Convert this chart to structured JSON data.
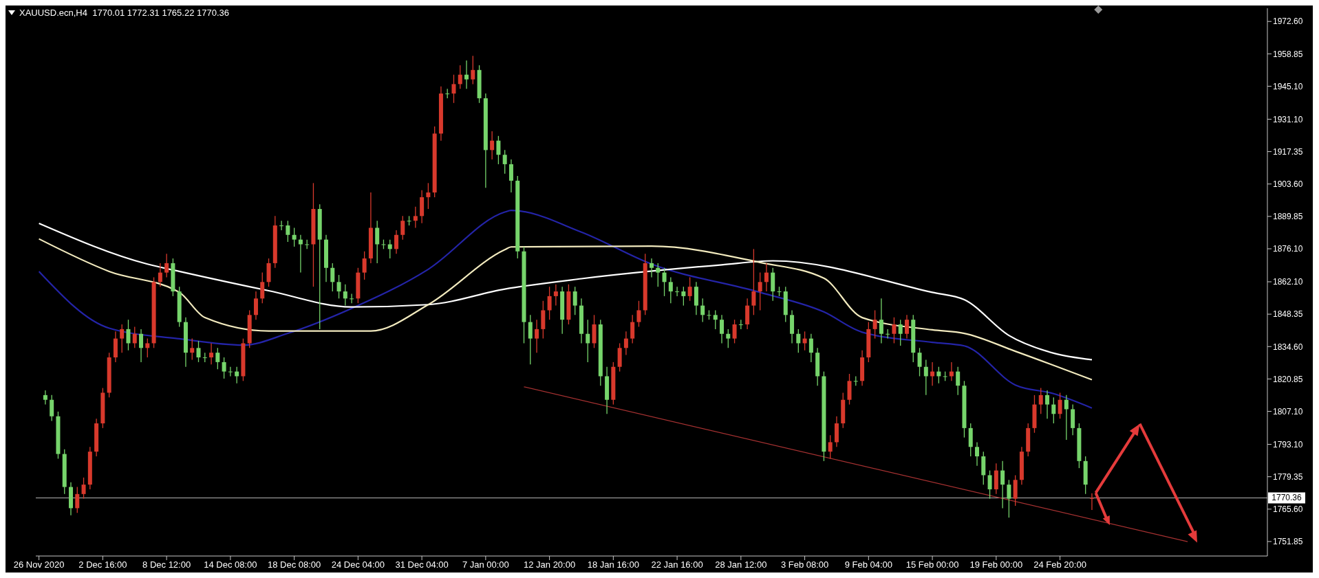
{
  "chart_data": {
    "type": "candlestick",
    "title": "XAUUSD.ecn,H4  1770.01 1772.31 1765.22 1770.36",
    "ylim": [
      1745.7,
      1978.2
    ],
    "yticks": [
      {
        "value": 1972.6,
        "label": "1972.60"
      },
      {
        "value": 1958.85,
        "label": "1958.85"
      },
      {
        "value": 1945.1,
        "label": "1945.10"
      },
      {
        "value": 1931.1,
        "label": "1931.10"
      },
      {
        "value": 1917.35,
        "label": "1917.35"
      },
      {
        "value": 1903.6,
        "label": "1903.60"
      },
      {
        "value": 1889.85,
        "label": "1889.85"
      },
      {
        "value": 1876.1,
        "label": "1876.10"
      },
      {
        "value": 1862.1,
        "label": "1862.10"
      },
      {
        "value": 1848.35,
        "label": "1848.35"
      },
      {
        "value": 1834.6,
        "label": "1834.60"
      },
      {
        "value": 1820.85,
        "label": "1820.85"
      },
      {
        "value": 1807.1,
        "label": "1807.10"
      },
      {
        "value": 1793.1,
        "label": "1793.10"
      },
      {
        "value": 1779.35,
        "label": "1779.35"
      },
      {
        "value": 1765.6,
        "label": "1765.60"
      },
      {
        "value": 1751.85,
        "label": "1751.85"
      }
    ],
    "categories": [
      "26 Nov 2020",
      null,
      null,
      null,
      null,
      null,
      null,
      null,
      null,
      null,
      "2 Dec 16:00",
      null,
      null,
      null,
      null,
      null,
      null,
      null,
      null,
      null,
      "8 Dec 12:00",
      null,
      null,
      null,
      null,
      null,
      null,
      null,
      null,
      null,
      "14 Dec 08:00",
      null,
      null,
      null,
      null,
      null,
      null,
      null,
      null,
      null,
      "18 Dec 08:00",
      null,
      null,
      null,
      null,
      null,
      null,
      null,
      null,
      null,
      "24 Dec 04:00",
      null,
      null,
      null,
      null,
      null,
      null,
      null,
      null,
      null,
      "31 Dec 04:00",
      null,
      null,
      null,
      null,
      null,
      null,
      null,
      null,
      null,
      "7 Jan 00:00",
      null,
      null,
      null,
      null,
      null,
      null,
      null,
      null,
      null,
      "12 Jan 20:00",
      null,
      null,
      null,
      null,
      null,
      null,
      null,
      null,
      null,
      "18 Jan 16:00",
      null,
      null,
      null,
      null,
      null,
      null,
      null,
      null,
      null,
      "22 Jan 16:00",
      null,
      null,
      null,
      null,
      null,
      null,
      null,
      null,
      null,
      "28 Jan 12:00",
      null,
      null,
      null,
      null,
      null,
      null,
      null,
      null,
      null,
      "3 Feb 08:00",
      null,
      null,
      null,
      null,
      null,
      null,
      null,
      null,
      null,
      "9 Feb 04:00",
      null,
      null,
      null,
      null,
      null,
      null,
      null,
      null,
      null,
      "15 Feb 00:00",
      null,
      null,
      null,
      null,
      null,
      null,
      null,
      null,
      null,
      "19 Feb 00:00",
      null,
      null,
      null,
      null,
      null,
      null,
      null,
      null,
      null,
      "24 Feb 20:00",
      null,
      null,
      null,
      null,
      null,
      null,
      null,
      null,
      null,
      null,
      null,
      null,
      null,
      null,
      null,
      null,
      null,
      null,
      null,
      null,
      null,
      null,
      null,
      null,
      null,
      null,
      null,
      null,
      null,
      null,
      null,
      null
    ],
    "ohlc": [
      null,
      [
        1814,
        1816,
        1810,
        1812
      ],
      [
        1812,
        1814,
        1803,
        1805
      ],
      [
        1805,
        1807,
        1787,
        1789
      ],
      [
        1789,
        1791,
        1772,
        1775
      ],
      [
        1775,
        1777,
        1763,
        1766
      ],
      [
        1766,
        1775,
        1764,
        1772
      ],
      [
        1772,
        1779,
        1770,
        1776
      ],
      [
        1776,
        1792,
        1774,
        1790
      ],
      [
        1790,
        1804,
        1788,
        1802
      ],
      [
        1802,
        1817,
        1800,
        1815
      ],
      [
        1815,
        1832,
        1813,
        1830
      ],
      [
        1830,
        1841,
        1828,
        1838
      ],
      [
        1838,
        1844,
        1832,
        1842
      ],
      [
        1842,
        1846,
        1833,
        1836
      ],
      [
        1836,
        1843,
        1834,
        1840
      ],
      [
        1840,
        1842,
        1828,
        1834
      ],
      [
        1834,
        1838,
        1830,
        1836
      ],
      [
        1836,
        1864,
        1834,
        1862
      ],
      [
        1862,
        1870,
        1860,
        1866
      ],
      [
        1866,
        1874,
        1864,
        1870
      ],
      [
        1870,
        1872,
        1856,
        1858
      ],
      [
        1858,
        1860,
        1843,
        1845
      ],
      [
        1845,
        1847,
        1826,
        1832
      ],
      [
        1832,
        1838,
        1829,
        1834
      ],
      [
        1834,
        1837,
        1828,
        1830
      ],
      [
        1830,
        1832,
        1828,
        1830
      ],
      [
        1830,
        1836,
        1827,
        1832
      ],
      [
        1832,
        1834,
        1825,
        1828
      ],
      [
        1828,
        1830,
        1821,
        1824
      ],
      [
        1824,
        1826,
        1822,
        1824
      ],
      [
        1824,
        1826,
        1819,
        1822
      ],
      [
        1822,
        1838,
        1820,
        1836
      ],
      [
        1836,
        1850,
        1834,
        1848
      ],
      [
        1848,
        1858,
        1846,
        1855
      ],
      [
        1855,
        1866,
        1853,
        1862
      ],
      [
        1862,
        1872,
        1860,
        1870
      ],
      [
        1870,
        1890,
        1868,
        1886
      ],
      [
        1886,
        1888,
        1884,
        1886
      ],
      [
        1886,
        1888,
        1879,
        1882
      ],
      [
        1882,
        1885,
        1877,
        1880
      ],
      [
        1880,
        1882,
        1866,
        1878
      ],
      [
        1878,
        1880,
        1876,
        1878
      ],
      [
        1878,
        1904,
        1860,
        1893
      ],
      [
        1893,
        1895,
        1842,
        1880
      ],
      [
        1880,
        1882,
        1862,
        1868
      ],
      [
        1868,
        1870,
        1858,
        1862
      ],
      [
        1862,
        1865,
        1855,
        1858
      ],
      [
        1858,
        1861,
        1852,
        1855
      ],
      [
        1855,
        1857,
        1853,
        1855
      ],
      [
        1855,
        1868,
        1853,
        1866
      ],
      [
        1866,
        1875,
        1863,
        1872
      ],
      [
        1872,
        1900,
        1870,
        1885
      ],
      [
        1885,
        1888,
        1870,
        1878
      ],
      [
        1878,
        1880,
        1876,
        1878
      ],
      [
        1878,
        1880,
        1872,
        1876
      ],
      [
        1876,
        1884,
        1874,
        1882
      ],
      [
        1882,
        1890,
        1880,
        1888
      ],
      [
        1888,
        1890,
        1886,
        1888
      ],
      [
        1888,
        1894,
        1885,
        1890
      ],
      [
        1890,
        1901,
        1887,
        1898
      ],
      [
        1898,
        1904,
        1893,
        1900
      ],
      [
        1900,
        1928,
        1898,
        1925
      ],
      [
        1925,
        1945,
        1922,
        1942
      ],
      [
        1942,
        1944,
        1940,
        1942
      ],
      [
        1942,
        1950,
        1938,
        1946
      ],
      [
        1946,
        1954,
        1944,
        1950
      ],
      [
        1950,
        1956,
        1944,
        1948
      ],
      [
        1948,
        1958,
        1946,
        1952
      ],
      [
        1952,
        1954,
        1938,
        1940
      ],
      [
        1940,
        1942,
        1902,
        1918
      ],
      [
        1918,
        1926,
        1914,
        1922
      ],
      [
        1922,
        1924,
        1912,
        1916
      ],
      [
        1916,
        1918,
        1908,
        1912
      ],
      [
        1912,
        1914,
        1900,
        1905
      ],
      [
        1905,
        1907,
        1872,
        1875
      ],
      [
        1875,
        1877,
        1836,
        1845
      ],
      [
        1845,
        1848,
        1827,
        1838
      ],
      [
        1838,
        1846,
        1832,
        1842
      ],
      [
        1842,
        1854,
        1838,
        1850
      ],
      [
        1850,
        1860,
        1846,
        1856
      ],
      [
        1856,
        1861,
        1852,
        1858
      ],
      [
        1858,
        1860,
        1840,
        1846
      ],
      [
        1846,
        1861,
        1844,
        1858
      ],
      [
        1858,
        1860,
        1848,
        1852
      ],
      [
        1852,
        1855,
        1836,
        1840
      ],
      [
        1840,
        1846,
        1828,
        1836
      ],
      [
        1836,
        1848,
        1834,
        1844
      ],
      [
        1844,
        1846,
        1818,
        1822
      ],
      [
        1822,
        1826,
        1806,
        1812
      ],
      [
        1812,
        1828,
        1810,
        1826
      ],
      [
        1826,
        1836,
        1824,
        1834
      ],
      [
        1834,
        1841,
        1831,
        1838
      ],
      [
        1838,
        1848,
        1836,
        1845
      ],
      [
        1845,
        1854,
        1843,
        1850
      ],
      [
        1850,
        1874,
        1848,
        1870
      ],
      [
        1870,
        1872,
        1864,
        1868
      ],
      [
        1868,
        1870,
        1860,
        1866
      ],
      [
        1866,
        1868,
        1856,
        1862
      ],
      [
        1862,
        1864,
        1853,
        1858
      ],
      [
        1858,
        1860,
        1856,
        1858
      ],
      [
        1858,
        1860,
        1852,
        1856
      ],
      [
        1856,
        1864,
        1854,
        1860
      ],
      [
        1860,
        1862,
        1848,
        1852
      ],
      [
        1852,
        1855,
        1845,
        1848
      ],
      [
        1848,
        1850,
        1846,
        1848
      ],
      [
        1848,
        1850,
        1842,
        1846
      ],
      [
        1846,
        1848,
        1836,
        1840
      ],
      [
        1840,
        1842,
        1834,
        1838
      ],
      [
        1838,
        1846,
        1836,
        1844
      ],
      [
        1844,
        1846,
        1842,
        1844
      ],
      [
        1844,
        1855,
        1842,
        1852
      ],
      [
        1852,
        1876,
        1848,
        1858
      ],
      [
        1858,
        1866,
        1850,
        1862
      ],
      [
        1862,
        1870,
        1858,
        1866
      ],
      [
        1866,
        1868,
        1854,
        1858
      ],
      [
        1858,
        1860,
        1856,
        1858
      ],
      [
        1858,
        1860,
        1845,
        1848
      ],
      [
        1848,
        1850,
        1836,
        1840
      ],
      [
        1840,
        1842,
        1832,
        1836
      ],
      [
        1836,
        1841,
        1833,
        1838
      ],
      [
        1838,
        1840,
        1828,
        1832
      ],
      [
        1832,
        1834,
        1818,
        1822
      ],
      [
        1822,
        1824,
        1786,
        1790
      ],
      [
        1790,
        1797,
        1787,
        1794
      ],
      [
        1794,
        1805,
        1792,
        1802
      ],
      [
        1802,
        1815,
        1800,
        1812
      ],
      [
        1812,
        1823,
        1810,
        1820
      ],
      [
        1820,
        1822,
        1818,
        1820
      ],
      [
        1820,
        1833,
        1818,
        1830
      ],
      [
        1830,
        1845,
        1828,
        1842
      ],
      [
        1842,
        1850,
        1838,
        1846
      ],
      [
        1846,
        1855,
        1836,
        1840
      ],
      [
        1840,
        1842,
        1838,
        1840
      ],
      [
        1840,
        1847,
        1836,
        1844
      ],
      [
        1844,
        1846,
        1835,
        1840
      ],
      [
        1840,
        1848,
        1838,
        1846
      ],
      [
        1846,
        1848,
        1828,
        1832
      ],
      [
        1832,
        1834,
        1822,
        1826
      ],
      [
        1826,
        1829,
        1814,
        1822
      ],
      [
        1822,
        1828,
        1818,
        1824
      ],
      [
        1824,
        1826,
        1819,
        1822
      ],
      [
        1822,
        1824,
        1820,
        1822
      ],
      [
        1822,
        1828,
        1820,
        1824
      ],
      [
        1824,
        1826,
        1814,
        1818
      ],
      [
        1818,
        1820,
        1796,
        1800
      ],
      [
        1800,
        1802,
        1788,
        1792
      ],
      [
        1792,
        1794,
        1784,
        1788
      ],
      [
        1788,
        1790,
        1776,
        1780
      ],
      [
        1780,
        1782,
        1770,
        1774
      ],
      [
        1774,
        1785,
        1772,
        1782
      ],
      [
        1782,
        1786,
        1766,
        1776
      ],
      [
        1776,
        1778,
        1762,
        1770
      ],
      [
        1770,
        1780,
        1767,
        1778
      ],
      [
        1778,
        1792,
        1776,
        1790
      ],
      [
        1790,
        1802,
        1788,
        1800
      ],
      [
        1800,
        1814,
        1798,
        1810
      ],
      [
        1810,
        1817,
        1806,
        1814
      ],
      [
        1814,
        1816,
        1804,
        1810
      ],
      [
        1810,
        1813,
        1802,
        1806
      ],
      [
        1806,
        1815,
        1804,
        1812
      ],
      [
        1812,
        1814,
        1795,
        1808
      ],
      [
        1808,
        1810,
        1797,
        1800
      ],
      [
        1800,
        1802,
        1783,
        1786
      ],
      [
        1786,
        1788,
        1772,
        1776
      ],
      [
        1770.01,
        1772.31,
        1765.22,
        1770.36
      ],
      null,
      null,
      null,
      null,
      null,
      null,
      null,
      null,
      null,
      null,
      null,
      null,
      null,
      null,
      null,
      null,
      null,
      null,
      null,
      null,
      null,
      null,
      null,
      null,
      null,
      null,
      null
    ],
    "colors": [
      null,
      "#76d46b",
      "#76d46b",
      "#76d46b",
      "#76d46b",
      "#76d46b",
      "#d8392c",
      "#d8392c",
      "#d8392c",
      "#d8392c",
      "#d8392c",
      "#d8392c",
      "#d8392c",
      "#d8392c",
      "#76d46b",
      "#d8392c",
      "#76d46b",
      "#d8392c",
      "#d8392c",
      "#d8392c",
      "#d8392c",
      "#76d46b",
      "#76d46b",
      "#76d46b",
      "#d8392c",
      "#76d46b",
      "#76d46b",
      "#d8392c",
      "#76d46b",
      "#76d46b",
      "#76d46b",
      "#76d46b",
      "#d8392c",
      "#d8392c",
      "#d8392c",
      "#d8392c",
      "#d8392c",
      "#d8392c",
      "#76d46b",
      "#76d46b",
      "#76d46b",
      "#76d46b",
      "#76d46b",
      "#d8392c",
      "#76d46b",
      "#76d46b",
      "#76d46b",
      "#76d46b",
      "#76d46b",
      "#76d46b",
      "#d8392c",
      "#d8392c",
      "#d8392c",
      "#76d46b",
      "#76d46b",
      "#76d46b",
      "#d8392c",
      "#d8392c",
      "#76d46b",
      "#d8392c",
      "#d8392c",
      "#d8392c",
      "#d8392c",
      "#d8392c",
      "#76d46b",
      "#d8392c",
      "#d8392c",
      "#76d46b",
      "#d8392c",
      "#76d46b",
      "#76d46b",
      "#d8392c",
      "#76d46b",
      "#76d46b",
      "#76d46b",
      "#76d46b",
      "#76d46b",
      "#76d46b",
      "#d8392c",
      "#d8392c",
      "#d8392c",
      "#d8392c",
      "#76d46b",
      "#d8392c",
      "#76d46b",
      "#76d46b",
      "#76d46b",
      "#d8392c",
      "#76d46b",
      "#76d46b",
      "#d8392c",
      "#d8392c",
      "#d8392c",
      "#d8392c",
      "#d8392c",
      "#d8392c",
      "#76d46b",
      "#76d46b",
      "#76d46b",
      "#76d46b",
      "#76d46b",
      "#76d46b",
      "#d8392c",
      "#76d46b",
      "#76d46b",
      "#76d46b",
      "#76d46b",
      "#76d46b",
      "#76d46b",
      "#d8392c",
      "#76d46b",
      "#d8392c",
      "#d8392c",
      "#d8392c",
      "#d8392c",
      "#76d46b",
      "#76d46b",
      "#76d46b",
      "#76d46b",
      "#76d46b",
      "#d8392c",
      "#76d46b",
      "#76d46b",
      "#76d46b",
      "#d8392c",
      "#d8392c",
      "#d8392c",
      "#d8392c",
      "#76d46b",
      "#d8392c",
      "#d8392c",
      "#d8392c",
      "#76d46b",
      "#76d46b",
      "#d8392c",
      "#76d46b",
      "#d8392c",
      "#76d46b",
      "#76d46b",
      "#76d46b",
      "#d8392c",
      "#76d46b",
      "#76d46b",
      "#d8392c",
      "#76d46b",
      "#76d46b",
      "#76d46b",
      "#76d46b",
      "#76d46b",
      "#76d46b",
      "#d8392c",
      "#76d46b",
      "#76d46b",
      "#d8392c",
      "#d8392c",
      "#d8392c",
      "#d8392c",
      "#d8392c",
      "#76d46b",
      "#76d46b",
      "#d8392c",
      "#76d46b",
      "#76d46b",
      "#76d46b",
      "#76d46b",
      "#d8392c",
      null,
      null,
      null,
      null,
      null,
      null,
      null,
      null,
      null,
      null,
      null,
      null,
      null,
      null,
      null,
      null,
      null,
      null,
      null,
      null,
      null,
      null,
      null,
      null,
      null,
      null,
      null
    ],
    "series": [
      {
        "type": "line",
        "color": "#2424a8",
        "values": [
          1866.5,
          null,
          null,
          null,
          null,
          null,
          null,
          null,
          null,
          null,
          null,
          1842.4,
          null,
          null,
          null,
          null,
          null,
          null,
          null,
          null,
          null,
          null,
          1837.9,
          null,
          null,
          null,
          null,
          null,
          null,
          null,
          null,
          null,
          1835.2,
          null,
          null,
          null,
          null,
          null,
          null,
          1840.2,
          null,
          null,
          null,
          null,
          null,
          null,
          null,
          null,
          null,
          1850.8,
          null,
          null,
          null,
          null,
          null,
          null,
          null,
          null,
          null,
          null,
          null,
          1867.4,
          null,
          null,
          null,
          null,
          null,
          null,
          null,
          null,
          null,
          null,
          null,
          1891.7,
          1892.4,
          null,
          null,
          null,
          null,
          null,
          null,
          null,
          null,
          null,
          null,
          1883.2,
          null,
          null,
          null,
          null,
          null,
          null,
          null,
          null,
          null,
          null,
          1869.6,
          null,
          null,
          null,
          null,
          null,
          null,
          null,
          null,
          null,
          null,
          null,
          null,
          null,
          null,
          null,
          null,
          1857.6,
          null,
          null,
          null,
          null,
          null,
          null,
          null,
          null,
          null,
          1849.3,
          null,
          null,
          null,
          null,
          null,
          1840.7,
          null,
          null,
          null,
          null,
          null,
          null,
          null,
          null,
          null,
          null,
          1836.4,
          null,
          null,
          null,
          null,
          1834.9,
          null,
          null,
          null,
          null,
          null,
          null,
          null,
          1818.3,
          null,
          null,
          null,
          null,
          null,
          1814.6,
          null,
          null,
          null,
          null,
          null,
          1808.5,
          null,
          null,
          null,
          null,
          null,
          null,
          null,
          null,
          null,
          null,
          null,
          null,
          null,
          null,
          null,
          null,
          null,
          null,
          null,
          null,
          null,
          null,
          null,
          null,
          null,
          null,
          null
        ]
      },
      {
        "type": "line",
        "color": "#ffffff",
        "values": [
          1886.9,
          null,
          null,
          null,
          null,
          null,
          null,
          null,
          null,
          null,
          null,
          null,
          null,
          null,
          null,
          null,
          null,
          1869.6,
          null,
          null,
          null,
          null,
          1866.5,
          null,
          null,
          null,
          null,
          null,
          null,
          null,
          null,
          null,
          null,
          null,
          null,
          null,
          1858.3,
          null,
          null,
          null,
          null,
          null,
          null,
          null,
          null,
          null,
          null,
          null,
          null,
          1851.4,
          null,
          null,
          null,
          null,
          null,
          null,
          null,
          null,
          null,
          null,
          null,
          1852.4,
          null,
          null,
          null,
          null,
          null,
          null,
          null,
          null,
          null,
          null,
          null,
          1859,
          null,
          null,
          null,
          null,
          null,
          null,
          null,
          null,
          null,
          null,
          null,
          1863.4,
          null,
          null,
          null,
          null,
          null,
          null,
          null,
          null,
          null,
          null,
          null,
          null,
          null,
          null,
          null,
          null,
          null,
          null,
          null,
          null,
          null,
          1869.3,
          null,
          null,
          null,
          null,
          null,
          null,
          null,
          1871,
          null,
          null,
          null,
          null,
          null,
          null,
          null,
          null,
          null,
          null,
          null,
          null,
          null,
          null,
          null,
          null,
          null,
          null,
          null,
          null,
          null,
          null,
          null,
          null,
          1857.6,
          null,
          null,
          null,
          null,
          1854.5,
          null,
          null,
          null,
          null,
          null,
          null,
          1839.3,
          null,
          null,
          null,
          null,
          null,
          null,
          1831.8,
          null,
          null,
          null,
          null,
          null,
          1829,
          null,
          null,
          null,
          null,
          null,
          null,
          null,
          null,
          null,
          null,
          null,
          null,
          null,
          null,
          null,
          null,
          null,
          null,
          null,
          null,
          null,
          null,
          null,
          null,
          null,
          null,
          null
        ]
      },
      {
        "type": "line",
        "color": "#f3ebbf",
        "values": [
          1880.3,
          null,
          null,
          null,
          null,
          null,
          null,
          null,
          null,
          null,
          null,
          1866.5,
          null,
          null,
          null,
          null,
          null,
          null,
          null,
          null,
          null,
          null,
          1857.6,
          null,
          null,
          null,
          1846.9,
          null,
          null,
          null,
          null,
          null,
          null,
          null,
          null,
          null,
          1841.2,
          null,
          null,
          null,
          null,
          null,
          null,
          null,
          null,
          null,
          null,
          null,
          null,
          null,
          null,
          null,
          1841.2,
          null,
          null,
          null,
          null,
          null,
          null,
          null,
          null,
          1852.4,
          null,
          null,
          null,
          null,
          null,
          null,
          null,
          null,
          null,
          null,
          null,
          1875.7,
          1876.9,
          null,
          null,
          null,
          null,
          null,
          null,
          null,
          null,
          null,
          null,
          null,
          null,
          null,
          null,
          null,
          null,
          null,
          null,
          null,
          null,
          null,
          1877.2,
          null,
          null,
          null,
          null,
          null,
          null,
          null,
          null,
          null,
          null,
          null,
          null,
          null,
          null,
          null,
          null,
          1870.3,
          null,
          null,
          null,
          null,
          null,
          null,
          null,
          null,
          null,
          1863.6,
          null,
          null,
          null,
          null,
          null,
          1846.9,
          null,
          null,
          null,
          null,
          null,
          null,
          null,
          null,
          null,
          null,
          1841.7,
          null,
          null,
          null,
          null,
          1840.2,
          null,
          null,
          null,
          null,
          null,
          null,
          null,
          1832.6,
          null,
          null,
          null,
          null,
          null,
          null,
          null,
          null,
          null,
          null,
          null,
          1820.5,
          null,
          null,
          null,
          null,
          null,
          null,
          null,
          null,
          null,
          null,
          null,
          null,
          null,
          null,
          null,
          null,
          null,
          null,
          null,
          null,
          null,
          null,
          null,
          null,
          null,
          null,
          null
        ]
      },
      {
        "type": "line",
        "color": "#a83232",
        "values": [
          null,
          null,
          null,
          null,
          null,
          null,
          null,
          null,
          null,
          null,
          null,
          null,
          null,
          null,
          null,
          null,
          null,
          null,
          null,
          null,
          null,
          null,
          null,
          null,
          null,
          null,
          null,
          null,
          null,
          null,
          null,
          null,
          null,
          null,
          null,
          null,
          null,
          null,
          null,
          null,
          null,
          null,
          null,
          null,
          null,
          null,
          null,
          null,
          null,
          null,
          null,
          null,
          null,
          null,
          null,
          null,
          null,
          null,
          null,
          null,
          null,
          null,
          null,
          null,
          null,
          null,
          null,
          null,
          null,
          null,
          null,
          null,
          null,
          null,
          null,
          null,
          1817.5,
          null,
          null,
          null,
          null,
          null,
          null,
          null,
          null,
          null,
          null,
          null,
          null,
          null,
          null,
          null,
          null,
          null,
          null,
          null,
          null,
          null,
          null,
          null,
          null,
          null,
          null,
          null,
          null,
          null,
          null,
          null,
          null,
          null,
          null,
          null,
          null,
          null,
          null,
          null,
          null,
          null,
          null,
          null,
          null,
          null,
          null,
          null,
          null,
          null,
          null,
          null,
          null,
          null,
          null,
          null,
          null,
          null,
          null,
          null,
          null,
          null,
          null,
          null,
          null,
          null,
          null,
          null,
          null,
          null,
          null,
          null,
          null,
          null,
          null,
          null,
          null,
          null,
          null,
          null,
          null,
          null,
          null,
          null,
          null,
          null,
          null,
          null,
          null,
          null,
          null,
          null,
          null,
          null,
          null,
          null,
          null,
          null,
          null,
          null,
          null,
          null,
          null,
          null,
          1751.8,
          null,
          null,
          null,
          null,
          null,
          null,
          null,
          null,
          null,
          null,
          null,
          null
        ]
      }
    ],
    "ref_lines": [
      {
        "axis": "y",
        "value": 1770.36,
        "label": "1770.36",
        "color": "#b8b8b8"
      }
    ]
  }
}
